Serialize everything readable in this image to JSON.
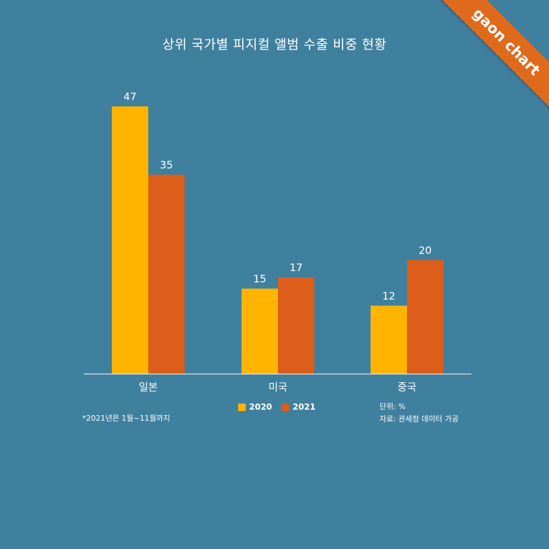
{
  "header": {
    "title": "상위 국가별 피지컬 앨범 수출 비중 현황"
  },
  "badge": {
    "text": "gaon chart"
  },
  "colors": {
    "background": "#40809f",
    "s2020": "#ffb400",
    "s2021": "#dc5e1a",
    "ribbon": "#e06a1c"
  },
  "chart_data": {
    "type": "bar",
    "title": "상위 국가별 피지컬 앨범 수출 비중 현황",
    "categories": [
      "일본",
      "미국",
      "중국"
    ],
    "series": [
      {
        "name": "2020",
        "values": [
          47,
          15,
          12
        ],
        "color": "#ffb400"
      },
      {
        "name": "2021",
        "values": [
          35,
          17,
          20
        ],
        "color": "#dc5e1a"
      }
    ],
    "xlabel": "",
    "ylabel": "",
    "ylim": [
      0,
      47
    ],
    "grid": false,
    "legend": "bottom-center",
    "data_labels": true
  },
  "footer": {
    "note": "*2021년은 1월~11월까지",
    "unit": "단위: %",
    "source": "자료: 관세청 데이터 가공"
  }
}
